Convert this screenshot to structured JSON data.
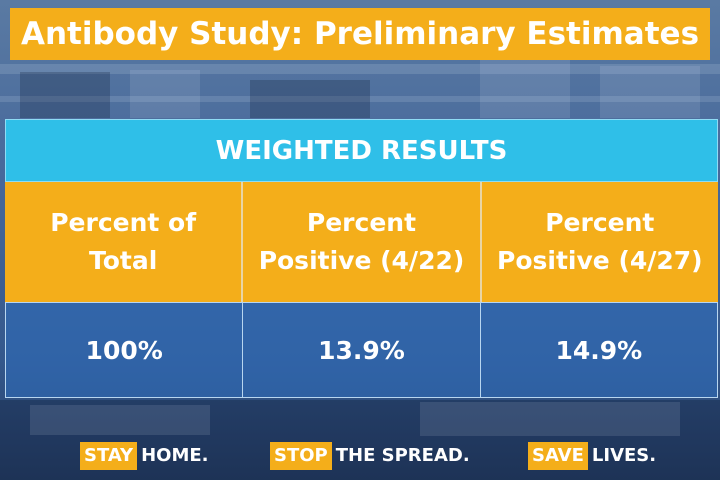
{
  "title": "Antibody Study: Preliminary Estimates",
  "table": {
    "header": "WEIGHTED RESULTS",
    "columns": [
      {
        "label": "Percent of\nTotal",
        "value": "100%"
      },
      {
        "label": "Percent\nPositive (4/22)",
        "value": "13.9%"
      },
      {
        "label": "Percent\nPositive (4/27)",
        "value": "14.9%"
      }
    ]
  },
  "slogans": [
    {
      "highlight": "STAY",
      "rest": "HOME."
    },
    {
      "highlight": "STOP",
      "rest": "THE SPREAD."
    },
    {
      "highlight": "SAVE",
      "rest": "LIVES."
    }
  ]
}
